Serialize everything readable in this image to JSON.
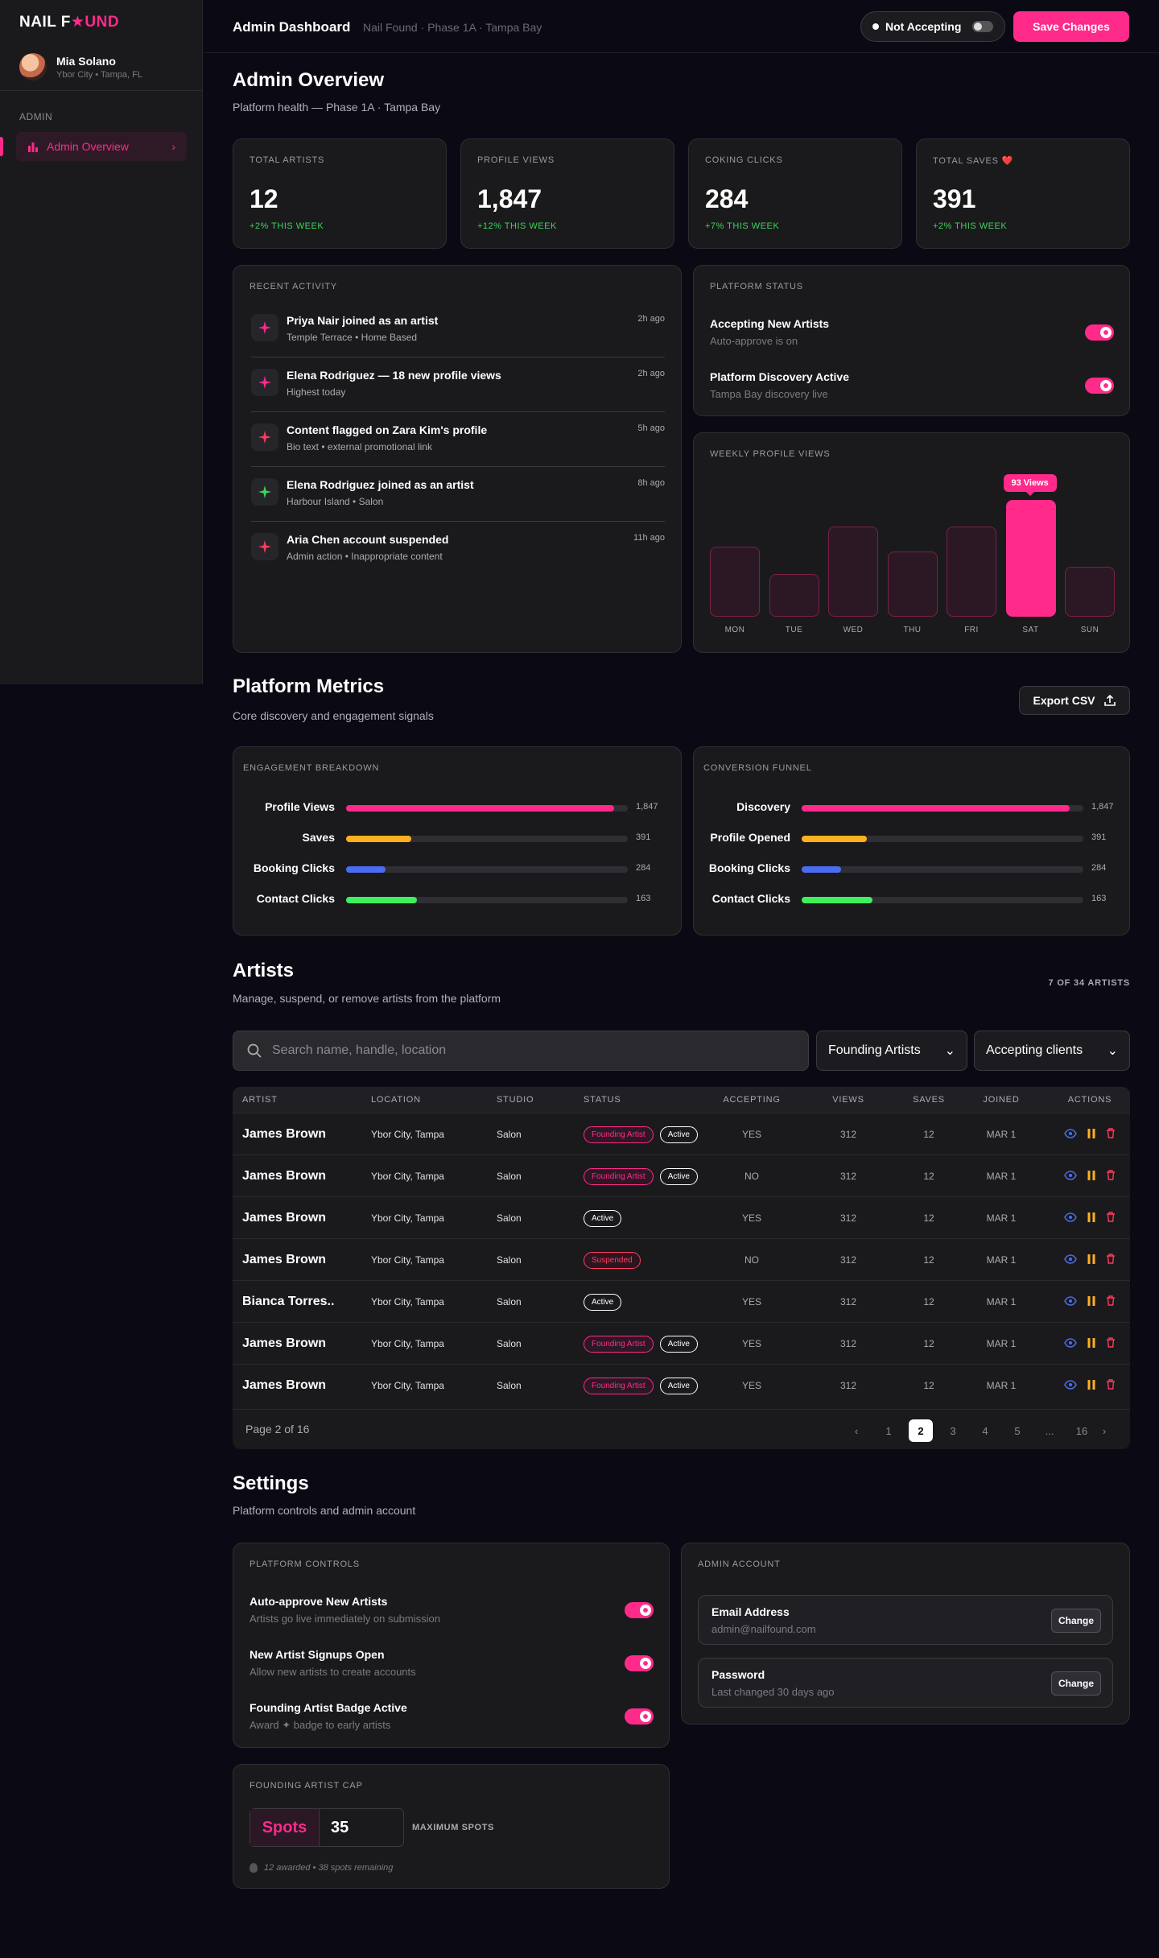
{
  "sidebar": {
    "logo_a": "NAIL F",
    "logo_star": "★",
    "logo_b": "UND",
    "user_name": "Mia Solano",
    "user_sub": "Ybor City • Tampa, FL",
    "nav_label": "ADMIN",
    "nav_item": "Admin Overview"
  },
  "topbar": {
    "title": "Admin Dashboard",
    "crumb": "Nail Found · Phase 1A · Tampa Bay",
    "toggle": "Not Accepting",
    "save": "Save Changes"
  },
  "overview": {
    "title": "Admin Overview",
    "subtitle": "Platform health — Phase 1A · Tampa Bay"
  },
  "stats": [
    {
      "label": "TOTAL ARTISTS",
      "value": "12",
      "change": "+2% THIS WEEK"
    },
    {
      "label": "PROFILE VIEWS",
      "value": "1,847",
      "change": "+12% THIS WEEK"
    },
    {
      "label": "COKING CLICKS",
      "value": "284",
      "change": "+7% THIS WEEK"
    },
    {
      "label": "TOTAL SAVES ❤️",
      "value": "391",
      "change": "+2% THIS WEEK"
    }
  ],
  "activity": {
    "label": "RECENT ACTIVITY",
    "items": [
      {
        "title": "Priya Nair joined as an artist",
        "sub": "Temple Terrace • Home Based",
        "time": "2h ago",
        "color": "#ff2a8a"
      },
      {
        "title": "Elena Rodriguez — 18 new profile views",
        "sub": "Highest today",
        "time": "2h ago",
        "color": "#ff2a8a"
      },
      {
        "title": "Content flagged on Zara Kim's profile",
        "sub": "Bio text • external promotional link",
        "time": "5h ago",
        "color": "#ff3b5c"
      },
      {
        "title": "Elena Rodriguez joined as an artist",
        "sub": "Harbour Island • Salon",
        "time": "8h ago",
        "color": "#3ed35c"
      },
      {
        "title": "Aria Chen account suspended",
        "sub": "Admin action • Inappropriate content",
        "time": "11h ago",
        "color": "#ff3b5c"
      }
    ]
  },
  "platform_status": {
    "label": "PLATFORM STATUS",
    "items": [
      {
        "title": "Accepting New Artists",
        "sub": "Auto-approve is on"
      },
      {
        "title": "Platform Discovery Active",
        "sub": "Tampa Bay discovery live"
      }
    ]
  },
  "chart_data": {
    "type": "bar",
    "title": "WEEKLY PROFILE VIEWS",
    "categories": [
      "MON",
      "TUE",
      "WED",
      "THU",
      "FRI",
      "SAT",
      "SUN"
    ],
    "values": [
      56,
      34,
      72,
      52,
      72,
      93,
      40
    ],
    "highlight": "SAT",
    "tooltip": "93 Views",
    "bar_color": "#ff2a8a"
  },
  "metrics": {
    "title": "Platform Metrics",
    "subtitle": "Core discovery and engagement signals",
    "export": "Export CSV",
    "engagement": {
      "label": "ENGAGEMENT BREAKDOWN",
      "rows": [
        {
          "name": "Profile Views",
          "value": "1,847",
          "pct": 0.95,
          "color": "#ff2a8a"
        },
        {
          "name": "Saves",
          "value": "391",
          "pct": 0.23,
          "color": "#ffb020"
        },
        {
          "name": "Booking Clicks",
          "value": "284",
          "pct": 0.14,
          "color": "#4a6cf0"
        },
        {
          "name": "Contact Clicks",
          "value": "163",
          "pct": 0.25,
          "color": "#3ef05c"
        }
      ]
    },
    "funnel": {
      "label": "CONVERSION FUNNEL",
      "rows": [
        {
          "name": "Discovery",
          "value": "1,847",
          "pct": 0.95,
          "color": "#ff2a8a"
        },
        {
          "name": "Profile Opened",
          "value": "391",
          "pct": 0.23,
          "color": "#ffb020"
        },
        {
          "name": "Booking Clicks",
          "value": "284",
          "pct": 0.14,
          "color": "#4a6cf0"
        },
        {
          "name": "Contact Clicks",
          "value": "163",
          "pct": 0.25,
          "color": "#3ef05c"
        }
      ]
    }
  },
  "artists": {
    "title": "Artists",
    "subtitle": "Manage, suspend, or remove artists from the platform",
    "count": "7 OF 34 ARTISTS",
    "search_placeholder": "Search name, handle, location",
    "filter1": "Founding Artists",
    "filter2": "Accepting clients",
    "columns": [
      "ARTIST",
      "LOCATION",
      "STUDIO",
      "STATUS",
      "ACCEPTING",
      "VIEWS",
      "SAVES",
      "JOINED",
      "ACTIONS"
    ],
    "rows": [
      {
        "name": "James Brown",
        "location": "Ybor City, Tampa",
        "studio": "Salon",
        "badges": [
          "Founding Artist",
          "Active"
        ],
        "accepting": "YES",
        "views": "312",
        "saves": "12",
        "joined": "MAR 1"
      },
      {
        "name": "James Brown",
        "location": "Ybor City, Tampa",
        "studio": "Salon",
        "badges": [
          "Founding Artist",
          "Active"
        ],
        "accepting": "NO",
        "views": "312",
        "saves": "12",
        "joined": "MAR 1"
      },
      {
        "name": "James Brown",
        "location": "Ybor City, Tampa",
        "studio": "Salon",
        "badges": [
          "Active"
        ],
        "accepting": "YES",
        "views": "312",
        "saves": "12",
        "joined": "MAR 1"
      },
      {
        "name": "James Brown",
        "location": "Ybor City, Tampa",
        "studio": "Salon",
        "badges": [
          "Suspended"
        ],
        "accepting": "NO",
        "views": "312",
        "saves": "12",
        "joined": "MAR 1"
      },
      {
        "name": "Bianca Torres..",
        "location": "Ybor City, Tampa",
        "studio": "Salon",
        "badges": [
          "Active"
        ],
        "accepting": "YES",
        "views": "312",
        "saves": "12",
        "joined": "MAR 1"
      },
      {
        "name": "James Brown",
        "location": "Ybor City, Tampa",
        "studio": "Salon",
        "badges": [
          "Founding Artist",
          "Active"
        ],
        "accepting": "YES",
        "views": "312",
        "saves": "12",
        "joined": "MAR 1"
      },
      {
        "name": "James Brown",
        "location": "Ybor City, Tampa",
        "studio": "Salon",
        "badges": [
          "Founding Artist",
          "Active"
        ],
        "accepting": "YES",
        "views": "312",
        "saves": "12",
        "joined": "MAR 1"
      }
    ],
    "page_label": "Page 2 of 16",
    "pages": [
      "1",
      "2",
      "3",
      "4",
      "5",
      "...",
      "16"
    ],
    "current_page": "2"
  },
  "settings": {
    "title": "Settings",
    "subtitle": "Platform controls and admin account",
    "controls": {
      "label": "PLATFORM CONTROLS",
      "items": [
        {
          "title": "Auto-approve New Artists",
          "sub": "Artists go live immediately on submission"
        },
        {
          "title": "New Artist Signups Open",
          "sub": "Allow new artists to create accounts"
        },
        {
          "title": "Founding Artist Badge Active",
          "sub": "Award ✦ badge to early artists"
        }
      ]
    },
    "account": {
      "label": "ADMIN ACCOUNT",
      "items": [
        {
          "title": "Email Address",
          "sub": "admin@nailfound.com",
          "button": "Change"
        },
        {
          "title": "Password",
          "sub": "Last changed 30 days ago",
          "button": "Change"
        }
      ]
    },
    "cap": {
      "label": "FOUNDING ARTIST CAP",
      "spots_label": "Spots",
      "spots_value": "35",
      "max_label": "MAXIMUM SPOTS",
      "note": "12 awarded • 38 spots remaining"
    }
  }
}
